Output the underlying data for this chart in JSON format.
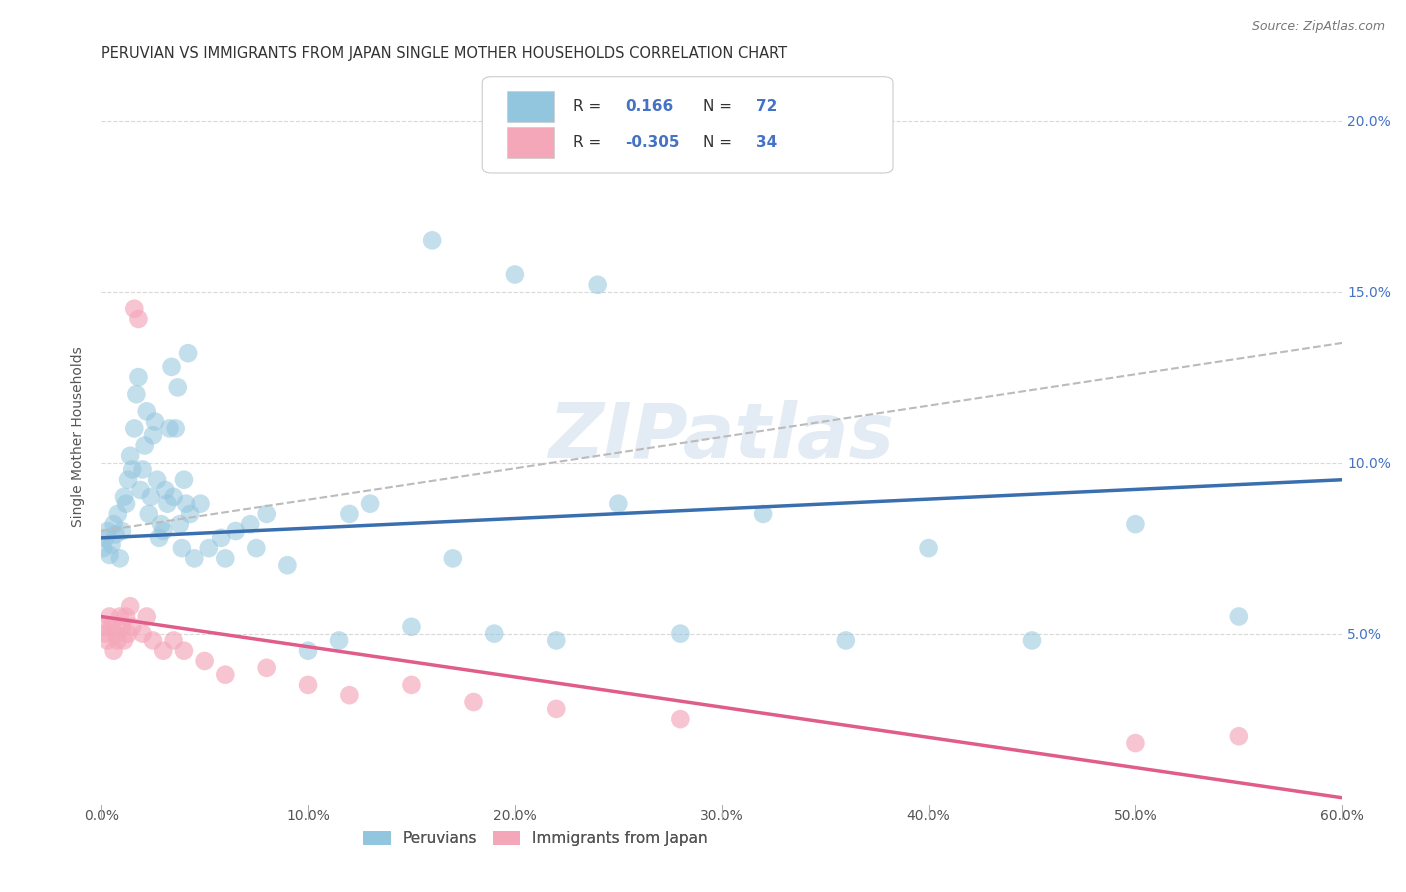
{
  "title": "PERUVIAN VS IMMIGRANTS FROM JAPAN SINGLE MOTHER HOUSEHOLDS CORRELATION CHART",
  "source": "Source: ZipAtlas.com",
  "ylabel": "Single Mother Households",
  "x_tick_labels": [
    "0.0%",
    "10.0%",
    "20.0%",
    "30.0%",
    "40.0%",
    "50.0%",
    "60.0%"
  ],
  "x_tick_vals": [
    0,
    10,
    20,
    30,
    40,
    50,
    60
  ],
  "y_tick_labels": [
    "5.0%",
    "10.0%",
    "15.0%",
    "20.0%"
  ],
  "y_tick_vals": [
    5,
    10,
    15,
    20
  ],
  "xlim": [
    0,
    60
  ],
  "ylim": [
    0,
    21.5
  ],
  "blue_R": 0.166,
  "blue_N": 72,
  "pink_R": -0.305,
  "pink_N": 34,
  "blue_color": "#92c5de",
  "pink_color": "#f4a7b9",
  "blue_line_color": "#3a6faf",
  "pink_line_color": "#e05c8a",
  "dashed_line_color": "#bbbbbb",
  "watermark": "ZIPatlas",
  "watermark_color": "#c8d8ea",
  "peruvian_x": [
    0.1,
    0.2,
    0.3,
    0.4,
    0.5,
    0.6,
    0.7,
    0.8,
    0.9,
    1.0,
    1.1,
    1.2,
    1.3,
    1.4,
    1.5,
    1.6,
    1.7,
    1.8,
    1.9,
    2.0,
    2.1,
    2.2,
    2.3,
    2.4,
    2.5,
    2.6,
    2.7,
    2.8,
    2.9,
    3.0,
    3.1,
    3.2,
    3.3,
    3.4,
    3.5,
    3.6,
    3.7,
    3.8,
    3.9,
    4.0,
    4.1,
    4.3,
    4.5,
    4.8,
    5.2,
    5.8,
    6.5,
    7.2,
    8.0,
    9.0,
    10.0,
    11.5,
    13.0,
    15.0,
    17.0,
    19.0,
    22.0,
    25.0,
    28.0,
    32.0,
    36.0,
    40.0,
    45.0,
    50.0,
    55.0,
    7.5,
    12.0,
    16.0,
    20.0,
    24.0,
    4.2,
    6.0
  ],
  "peruvian_y": [
    7.5,
    7.8,
    8.0,
    7.3,
    7.6,
    8.2,
    7.9,
    8.5,
    7.2,
    8.0,
    9.0,
    8.8,
    9.5,
    10.2,
    9.8,
    11.0,
    12.0,
    12.5,
    9.2,
    9.8,
    10.5,
    11.5,
    8.5,
    9.0,
    10.8,
    11.2,
    9.5,
    7.8,
    8.2,
    8.0,
    9.2,
    8.8,
    11.0,
    12.8,
    9.0,
    11.0,
    12.2,
    8.2,
    7.5,
    9.5,
    8.8,
    8.5,
    7.2,
    8.8,
    7.5,
    7.8,
    8.0,
    8.2,
    8.5,
    7.0,
    4.5,
    4.8,
    8.8,
    5.2,
    7.2,
    5.0,
    4.8,
    8.8,
    5.0,
    8.5,
    4.8,
    7.5,
    4.8,
    8.2,
    5.5,
    7.5,
    8.5,
    16.5,
    15.5,
    15.2,
    13.2,
    7.2
  ],
  "japan_x": [
    0.1,
    0.2,
    0.3,
    0.4,
    0.5,
    0.6,
    0.7,
    0.8,
    0.9,
    1.0,
    1.1,
    1.2,
    1.3,
    1.4,
    1.5,
    1.6,
    1.8,
    2.0,
    2.2,
    2.5,
    3.0,
    3.5,
    4.0,
    5.0,
    6.0,
    8.0,
    10.0,
    12.0,
    15.0,
    18.0,
    22.0,
    28.0,
    50.0,
    55.0
  ],
  "japan_y": [
    5.2,
    5.0,
    4.8,
    5.5,
    5.2,
    4.5,
    5.0,
    4.8,
    5.5,
    5.2,
    4.8,
    5.5,
    5.0,
    5.8,
    5.2,
    14.5,
    14.2,
    5.0,
    5.5,
    4.8,
    4.5,
    4.8,
    4.5,
    4.2,
    3.8,
    4.0,
    3.5,
    3.2,
    3.5,
    3.0,
    2.8,
    2.5,
    1.8,
    2.0
  ],
  "blue_trendline_x": [
    0,
    60
  ],
  "blue_trendline_y": [
    7.8,
    9.5
  ],
  "pink_trendline_x": [
    0,
    60
  ],
  "pink_trendline_y": [
    5.5,
    0.2
  ],
  "dashed_trendline_x": [
    0,
    60
  ],
  "dashed_trendline_y": [
    8.0,
    13.5
  ],
  "legend_labels": [
    "Peruvians",
    "Immigrants from Japan"
  ],
  "grid_color": "#d0d0d0",
  "bg_color": "#ffffff",
  "title_fontsize": 10.5,
  "axis_label_fontsize": 10,
  "tick_fontsize": 10,
  "legend_fontsize": 11
}
